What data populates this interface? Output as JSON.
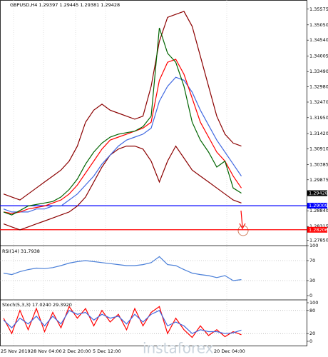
{
  "chart_data": [
    {
      "type": "line",
      "title": "GBPUSD,H4  1.29397 1.29445 1.29381 1.29428",
      "ylim": [
        1.277,
        1.3588
      ],
      "yticks": [
        1.35575,
        {
          "value": 1.3505,
          "label": "1.35050"
        },
        {
          "value": 1.3454,
          "label": "1.34540"
        },
        1.34005,
        {
          "value": 1.3349,
          "label": "1.33490"
        },
        {
          "value": 1.3298,
          "label": "1.32980"
        },
        {
          "value": 1.3247,
          "label": "1.32470"
        },
        {
          "value": 1.3195,
          "label": "1.31950"
        },
        {
          "value": 1.3142,
          "label": "1.31420"
        },
        {
          "value": 1.3091,
          "label": "1.30910"
        },
        1.30385,
        1.29875,
        {
          "value": 1.2884,
          "label": "1.28840"
        },
        1.28315,
        {
          "value": 1.2785,
          "label": "1.27850"
        }
      ],
      "levels": [
        {
          "value": 1.29009,
          "color": "#0000ff"
        },
        {
          "value": 1.28206,
          "color": "#ff0000"
        }
      ],
      "last_price": 1.29428,
      "series": [
        {
          "color": "#8b0000",
          "values": [
            1.294,
            1.293,
            1.292,
            1.294,
            1.296,
            1.298,
            1.3,
            1.302,
            1.305,
            1.31,
            1.318,
            1.322,
            1.324,
            1.322,
            1.321,
            1.32,
            1.319,
            1.32,
            1.33,
            1.345,
            1.353,
            1.354,
            1.355,
            1.35,
            1.34,
            1.33,
            1.32,
            1.314,
            1.311,
            1.31
          ]
        },
        {
          "color": "#8b0000",
          "values": [
            1.284,
            1.283,
            1.282,
            1.283,
            1.284,
            1.285,
            1.286,
            1.287,
            1.288,
            1.29,
            1.293,
            1.298,
            1.303,
            1.307,
            1.309,
            1.31,
            1.31,
            1.309,
            1.305,
            1.298,
            1.305,
            1.31,
            1.306,
            1.302,
            1.3,
            1.298,
            1.296,
            1.294,
            1.292,
            1.291
          ]
        },
        {
          "color": "#4169e1",
          "values": [
            1.289,
            1.288,
            1.288,
            1.288,
            1.289,
            1.289,
            1.29,
            1.29,
            1.292,
            1.294,
            1.297,
            1.3,
            1.304,
            1.307,
            1.31,
            1.312,
            1.313,
            1.314,
            1.316,
            1.325,
            1.33,
            1.333,
            1.332,
            1.328,
            1.322,
            1.317,
            1.312,
            1.308,
            1.304,
            1.3
          ]
        },
        {
          "color": "#ff0000",
          "values": [
            1.288,
            1.2875,
            1.288,
            1.289,
            1.2895,
            1.29,
            1.291,
            1.292,
            1.294,
            1.297,
            1.301,
            1.305,
            1.309,
            1.312,
            1.313,
            1.314,
            1.315,
            1.316,
            1.318,
            1.332,
            1.338,
            1.339,
            1.334,
            1.326,
            1.318,
            1.313,
            1.308,
            1.305,
            1.3,
            1.296
          ]
        },
        {
          "color": "#006400",
          "values": [
            1.288,
            1.287,
            1.2885,
            1.29,
            1.2905,
            1.291,
            1.2915,
            1.293,
            1.2955,
            1.299,
            1.304,
            1.308,
            1.311,
            1.313,
            1.314,
            1.3145,
            1.315,
            1.3165,
            1.32,
            1.3495,
            1.341,
            1.338,
            1.33,
            1.318,
            1.312,
            1.308,
            1.303,
            1.305,
            1.296,
            1.2943
          ]
        }
      ]
    },
    {
      "type": "line",
      "title": "RSI(14) 31.7938",
      "ylim": [
        0,
        100
      ],
      "yticks": [
        100,
        70,
        30,
        0
      ],
      "series": [
        {
          "color": "#4a7fd8",
          "values": [
            45,
            42,
            48,
            52,
            55,
            54,
            56,
            60,
            65,
            68,
            70,
            68,
            66,
            64,
            62,
            60,
            60,
            62,
            66,
            78,
            62,
            60,
            52,
            45,
            42,
            40,
            36,
            40,
            30,
            32
          ]
        }
      ]
    },
    {
      "type": "line",
      "title": "Stoch(5,3,3) 17.0240 29.3920",
      "ylim": [
        0,
        100
      ],
      "yticks": [
        100,
        80,
        20,
        0
      ],
      "series": [
        {
          "color": "#ff0000",
          "values": [
            60,
            20,
            80,
            30,
            85,
            25,
            75,
            35,
            90,
            60,
            85,
            40,
            80,
            50,
            70,
            30,
            85,
            40,
            75,
            90,
            20,
            60,
            30,
            10,
            40,
            15,
            30,
            12,
            25,
            17
          ]
        },
        {
          "color": "#4169e1",
          "values": [
            55,
            35,
            60,
            45,
            65,
            40,
            65,
            45,
            80,
            70,
            75,
            55,
            70,
            60,
            65,
            45,
            70,
            50,
            70,
            80,
            40,
            50,
            40,
            20,
            30,
            25,
            25,
            20,
            22,
            29
          ]
        }
      ]
    }
  ],
  "time_labels": [
    "25 Nov 2019",
    "28 Nov 04:00",
    "2 Dec 20:00",
    "5 Dec 12:00",
    "20 Dec 04:00"
  ],
  "watermark": "instaforex"
}
